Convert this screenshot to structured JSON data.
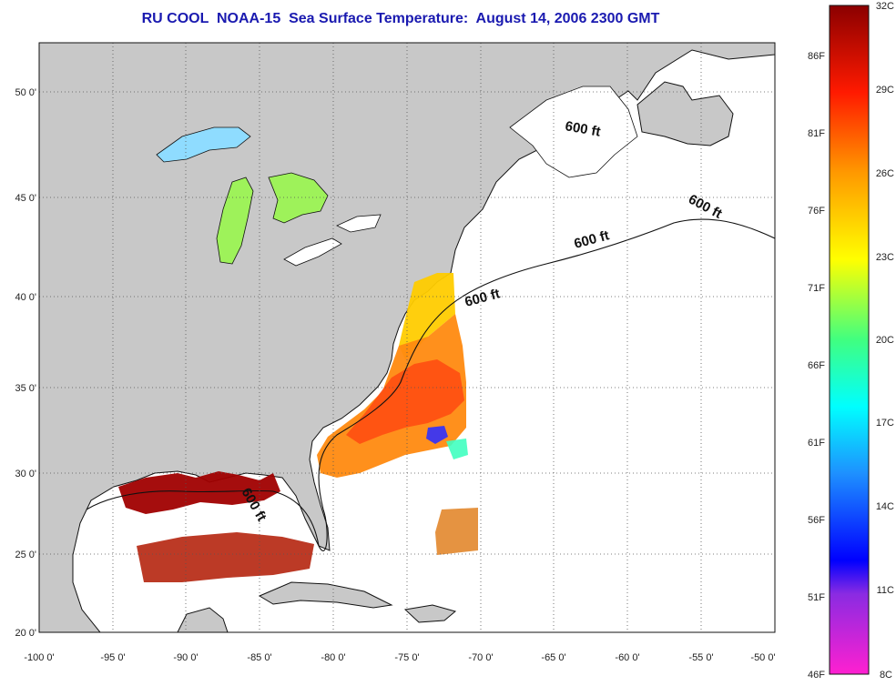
{
  "title": "RU COOL  NOAA-15  Sea Surface Temperature:  August 14, 2006 2300 GMT",
  "map": {
    "lon_ticks": [
      "-100 0'",
      "-95 0'",
      "-90 0'",
      "-85 0'",
      "-80 0'",
      "-75 0'",
      "-70 0'",
      "-65 0'",
      "-60 0'",
      "-55 0'",
      "-50 0'"
    ],
    "lat_ticks": [
      "50 0'",
      "45 0'",
      "40 0'",
      "35 0'",
      "30 0'",
      "25 0'",
      "20 0'"
    ],
    "contour_label": "600 ft",
    "colors": {
      "land": "#c8c8c8",
      "ocean_nodata": "#ffffff",
      "gridline": "#555555"
    }
  },
  "colorbar": {
    "celsius_labels": [
      "32C",
      "29C",
      "26C",
      "23C",
      "20C",
      "17C",
      "14C",
      "11C",
      "8C"
    ],
    "fahrenheit_labels": [
      "86F",
      "81F",
      "76F",
      "71F",
      "66F",
      "61F",
      "56F",
      "51F",
      "46F"
    ]
  }
}
